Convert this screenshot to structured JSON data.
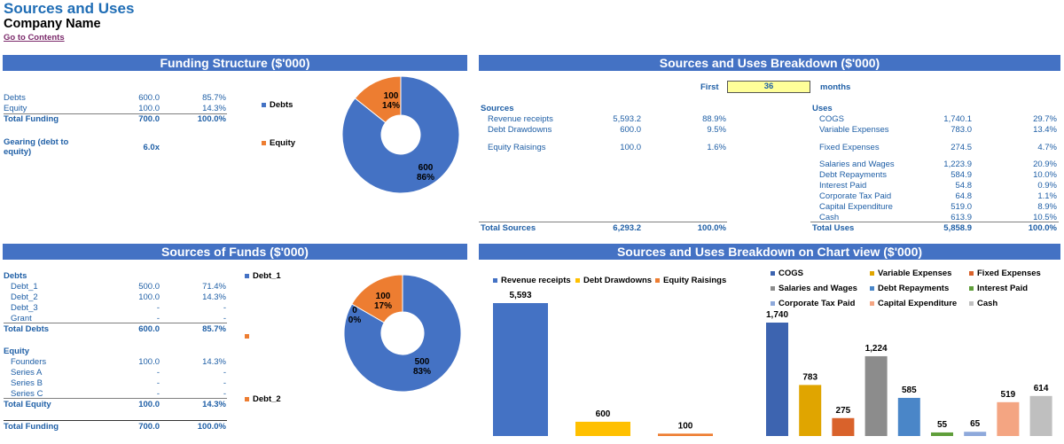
{
  "header": {
    "title": "Sources and Uses",
    "company": "Company Name",
    "link": "Go to Contents"
  },
  "funding": {
    "header": "Funding Structure ($'000)",
    "rows": [
      {
        "label": "Debts",
        "value": "600.0",
        "pct": "85.7%"
      },
      {
        "label": "Equity",
        "value": "100.0",
        "pct": "14.3%"
      }
    ],
    "total": {
      "label": "Total Funding",
      "value": "700.0",
      "pct": "100.0%"
    },
    "gearing_label_1": "Gearing (debt to",
    "gearing_label_2": "equity)",
    "gearing_value": "6.0x",
    "legend": [
      "Debts",
      "Equity"
    ]
  },
  "breakdown": {
    "header": "Sources and Uses Breakdown ($'000)",
    "first_label": "First",
    "first_value": "36",
    "months_label": "months",
    "sources_title": "Sources",
    "sources": [
      {
        "label": "Revenue receipts",
        "value": "5,593.2",
        "pct": "88.9%"
      },
      {
        "label": "Debt Drawdowns",
        "value": "600.0",
        "pct": "9.5%"
      },
      {
        "label": "Equity Raisings",
        "value": "100.0",
        "pct": "1.6%"
      }
    ],
    "sources_total": {
      "label": "Total Sources",
      "value": "6,293.2",
      "pct": "100.0%"
    },
    "uses_title": "Uses",
    "uses": [
      {
        "label": "COGS",
        "value": "1,740.1",
        "pct": "29.7%"
      },
      {
        "label": "Variable Expenses",
        "value": "783.0",
        "pct": "13.4%"
      },
      {
        "label": "Fixed Expenses",
        "value": "274.5",
        "pct": "4.7%"
      },
      {
        "label": "Salaries and Wages",
        "value": "1,223.9",
        "pct": "20.9%"
      },
      {
        "label": "Debt Repayments",
        "value": "584.9",
        "pct": "10.0%"
      },
      {
        "label": "Interest Paid",
        "value": "54.8",
        "pct": "0.9%"
      },
      {
        "label": "Corporate Tax Paid",
        "value": "64.8",
        "pct": "1.1%"
      },
      {
        "label": "Capital Expenditure",
        "value": "519.0",
        "pct": "8.9%"
      },
      {
        "label": "Cash",
        "value": "613.9",
        "pct": "10.5%"
      }
    ],
    "uses_total": {
      "label": "Total Uses",
      "value": "5,858.9",
      "pct": "100.0%"
    }
  },
  "sof": {
    "header": "Sources of Funds ($'000)",
    "debts_title": "Debts",
    "debts": [
      {
        "label": "Debt_1",
        "value": "500.0",
        "pct": "71.4%"
      },
      {
        "label": "Debt_2",
        "value": "100.0",
        "pct": "14.3%"
      },
      {
        "label": "Debt_3",
        "value": "-",
        "pct": "-"
      },
      {
        "label": "Grant",
        "value": "-",
        "pct": "-"
      }
    ],
    "debts_total": {
      "label": "Total Debts",
      "value": "600.0",
      "pct": "85.7%"
    },
    "equity_title": "Equity",
    "equity": [
      {
        "label": "Founders",
        "value": "100.0",
        "pct": "14.3%"
      },
      {
        "label": "Series A",
        "value": "-",
        "pct": "-"
      },
      {
        "label": "Series B",
        "value": "-",
        "pct": "-"
      },
      {
        "label": "Series C",
        "value": "-",
        "pct": "-"
      }
    ],
    "equity_total": {
      "label": "Total Equity",
      "value": "100.0",
      "pct": "14.3%"
    },
    "total": {
      "label": "Total Funding",
      "value": "700.0",
      "pct": "100.0%"
    },
    "legend": [
      "Debt_1",
      "Debt_2"
    ]
  },
  "chartview": {
    "header": "Sources and Uses Breakdown on Chart view ($'000)"
  },
  "colors": {
    "header_bg": "#4472c4",
    "text_blue": "#1f5fa6",
    "pie_blue": "#4472c4",
    "pie_orange": "#ed7d31",
    "input_yellow": "#ffff99"
  },
  "chart_data": [
    {
      "type": "pie",
      "categories": [
        "Debts",
        "Equity"
      ],
      "values": [
        600,
        100
      ],
      "labels": [
        "600\n86%",
        "100\n14%"
      ],
      "colors": [
        "#4472c4",
        "#ed7d31"
      ]
    },
    {
      "type": "pie",
      "categories": [
        "Debt_1",
        "Debt_2",
        "Debt_3"
      ],
      "values": [
        500,
        100,
        0
      ],
      "labels": [
        "500\n83%",
        "100\n17%",
        "0\n0%"
      ],
      "colors": [
        "#4472c4",
        "#ed7d31",
        "#a5a5a5"
      ]
    },
    {
      "type": "bar",
      "categories": [
        "Revenue receipts",
        "Debt Drawdowns",
        "Equity Raisings"
      ],
      "values": [
        5593,
        600,
        100
      ],
      "labels": [
        "5,593",
        "600",
        "100"
      ],
      "colors": [
        "#4472c4",
        "#ffc000",
        "#ed7d31"
      ]
    },
    {
      "type": "bar",
      "categories": [
        "COGS",
        "Variable Expenses",
        "Fixed Expenses",
        "Salaries and Wages",
        "Debt Repayments",
        "Interest Paid",
        "Corporate Tax Paid",
        "Capital Expenditure",
        "Cash"
      ],
      "values": [
        1740,
        783,
        275,
        1224,
        585,
        55,
        65,
        519,
        614
      ],
      "labels": [
        "1,740",
        "783",
        "275",
        "1,224",
        "585",
        "55",
        "65",
        "519",
        "614"
      ],
      "colors": [
        "#3d64b0",
        "#e0a500",
        "#d9622b",
        "#8c8c8c",
        "#4a86c8",
        "#5f9e3a",
        "#8ea9db",
        "#f4a582",
        "#bfbfbf"
      ]
    }
  ]
}
